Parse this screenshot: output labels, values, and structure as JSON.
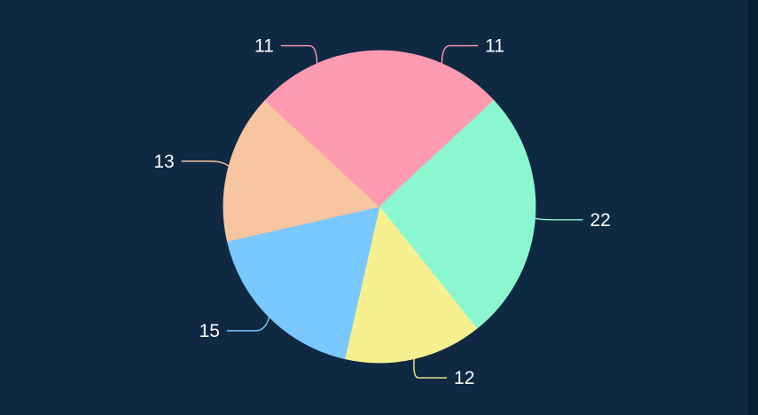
{
  "chart_data": {
    "type": "pie",
    "title": "",
    "background": "#0f2942",
    "start_angle_deg": 0,
    "direction": "clockwise",
    "slices": [
      {
        "label": "11",
        "value": 11,
        "color": "#ff9bb0"
      },
      {
        "label": "22",
        "value": 22,
        "color": "#8af7d0"
      },
      {
        "label": "12",
        "value": 12,
        "color": "#f6f08f"
      },
      {
        "label": "15",
        "value": 15,
        "color": "#79c8ff"
      },
      {
        "label": "13",
        "value": 13,
        "color": "#f7c59f"
      },
      {
        "label": "11",
        "value": 11,
        "color": "#ff9bb0"
      }
    ],
    "legend": "none",
    "data_labels": "outside with leader lines"
  }
}
